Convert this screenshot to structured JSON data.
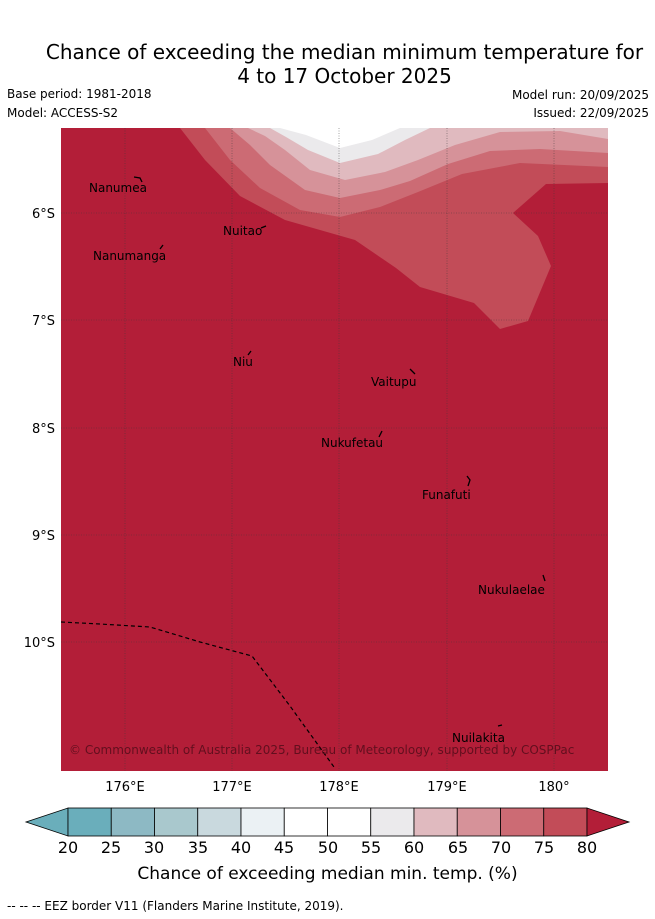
{
  "title": {
    "line1": "Chance of exceeding the median minimum temperature for",
    "line2": "4 to 17 October 2025"
  },
  "meta": {
    "base_period": "Base period: 1981-2018",
    "model": "Model: ACCESS-S2",
    "model_run": "Model run: 20/09/2025",
    "issued": "Issued: 22/09/2025"
  },
  "map": {
    "lat_labels": [
      "6°S",
      "7°S",
      "8°S",
      "9°S",
      "10°S"
    ],
    "lon_labels": [
      "176°E",
      "177°E",
      "178°E",
      "179°E",
      "180°"
    ],
    "places": [
      "Nanumea",
      "Nuitao",
      "Nanumanga",
      "Niu",
      "Vaitupu",
      "Nukufetau",
      "Funafuti",
      "Nukulaelae",
      "Nuilakita"
    ],
    "copyright": "© Commonwealth of Australia 2025, Bureau of Meteorology, supported by COSPPac"
  },
  "colorbar": {
    "labels": [
      "20",
      "25",
      "30",
      "35",
      "40",
      "45",
      "50",
      "55",
      "60",
      "65",
      "70",
      "75",
      "80"
    ],
    "colors": [
      "#6aaebb",
      "#8db9c4",
      "#a9c8cd",
      "#c9d9de",
      "#ebf1f4",
      "#ffffff",
      "#ffffff",
      "#ebeaec",
      "#e0babf",
      "#d69299",
      "#cc6b74",
      "#c24c58",
      "#b31e38"
    ],
    "title": "Chance of exceeding median min. temp. (%)"
  },
  "footer": "-- -- -- EEZ border V11 (Flanders Marine Institute, 2019)."
}
